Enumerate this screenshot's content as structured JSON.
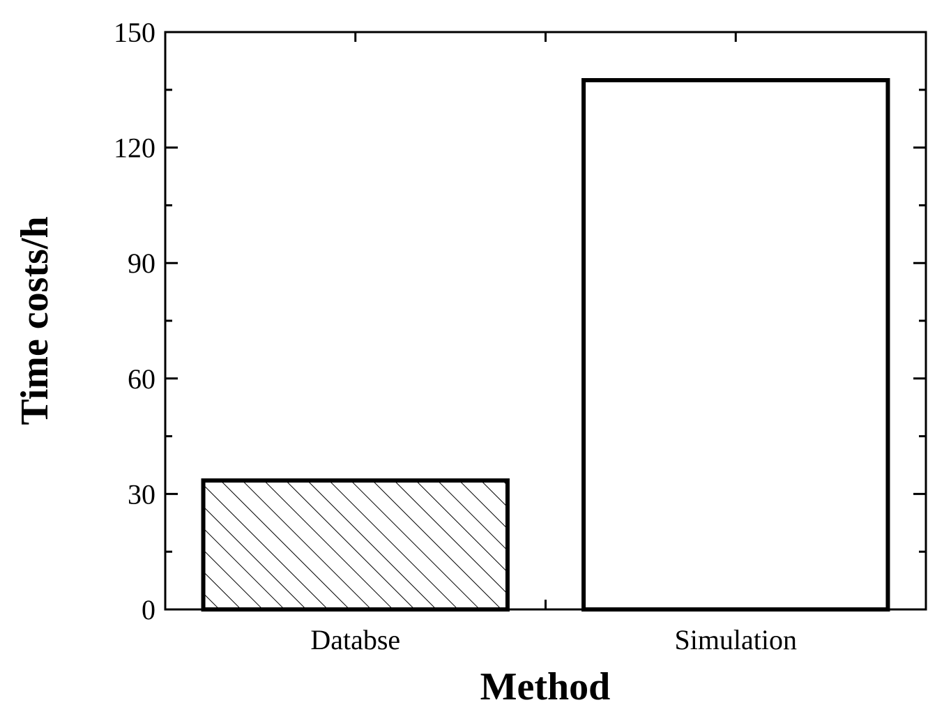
{
  "chart_data": {
    "type": "bar",
    "categories": [
      "Databse",
      "Simulation"
    ],
    "values": [
      33.5,
      137.5
    ],
    "bar_fills": [
      "hatched",
      "none"
    ],
    "xlabel": "Method",
    "ylabel": "Time costs/h",
    "ylim": [
      0,
      150
    ],
    "yticks": [
      0,
      30,
      60,
      90,
      120,
      150
    ],
    "grid": false,
    "legend": "none",
    "colors": {
      "stroke": "#000000",
      "background": "#ffffff"
    }
  }
}
